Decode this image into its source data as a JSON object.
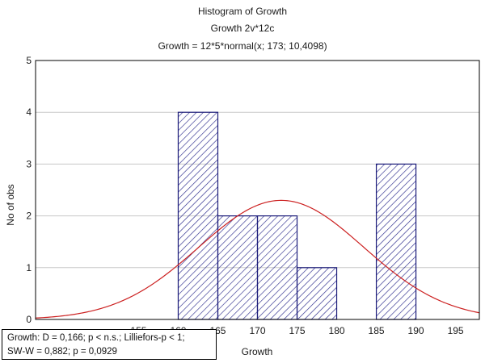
{
  "chart_data": {
    "type": "bar",
    "title": "Histogram of Growth",
    "subtitle": "Growth 2v*12c",
    "fit_label": "Growth = 12*5*normal(x; 173; 10,4098)",
    "xlabel": "Growth",
    "ylabel": "No of obs",
    "xlim": [
      142,
      198
    ],
    "ylim": [
      0,
      5
    ],
    "x_ticks": [
      155,
      160,
      165,
      170,
      175,
      180,
      185,
      190,
      195
    ],
    "y_ticks": [
      0,
      1,
      2,
      3,
      4,
      5
    ],
    "bins": [
      {
        "start": 160,
        "end": 165,
        "count": 4
      },
      {
        "start": 165,
        "end": 170,
        "count": 2
      },
      {
        "start": 170,
        "end": 175,
        "count": 2
      },
      {
        "start": 175,
        "end": 180,
        "count": 1
      },
      {
        "start": 180,
        "end": 185,
        "count": 0
      },
      {
        "start": 185,
        "end": 190,
        "count": 3
      }
    ],
    "normal_fit": {
      "n": 12,
      "bin_width": 5,
      "mean": 173,
      "sd": 10.4098
    },
    "colors": {
      "bar_stroke": "#1c1c7a",
      "hatch": "#2a2a8c",
      "curve": "#cc2020",
      "grid": "#c8c8c8"
    },
    "grid": "horizontal"
  },
  "stats": {
    "line1": "Growth:   D = 0,166; p < n.s.; Lilliefors-p < 1;",
    "line2": "SW-W = 0,882; p = 0,0929"
  }
}
